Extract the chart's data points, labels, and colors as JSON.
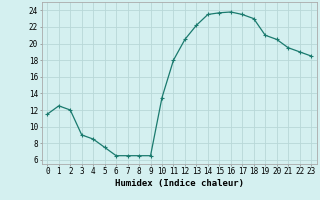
{
  "x": [
    0,
    1,
    2,
    3,
    4,
    5,
    6,
    7,
    8,
    9,
    10,
    11,
    12,
    13,
    14,
    15,
    16,
    17,
    18,
    19,
    20,
    21,
    22,
    23
  ],
  "y": [
    11.5,
    12.5,
    12.0,
    9.0,
    8.5,
    7.5,
    6.5,
    6.5,
    6.5,
    6.5,
    13.5,
    18.0,
    20.5,
    22.2,
    23.5,
    23.7,
    23.8,
    23.5,
    23.0,
    21.0,
    20.5,
    19.5,
    19.0,
    18.5
  ],
  "line_color": "#1a7a6e",
  "marker": "+",
  "marker_size": 3,
  "marker_lw": 0.8,
  "bg_color": "#d4f0f0",
  "grid_color": "#b8d8d8",
  "xlabel": "Humidex (Indice chaleur)",
  "xlim": [
    -0.5,
    23.5
  ],
  "ylim": [
    5.5,
    25.0
  ],
  "yticks": [
    6,
    8,
    10,
    12,
    14,
    16,
    18,
    20,
    22,
    24
  ],
  "xticks": [
    0,
    1,
    2,
    3,
    4,
    5,
    6,
    7,
    8,
    9,
    10,
    11,
    12,
    13,
    14,
    15,
    16,
    17,
    18,
    19,
    20,
    21,
    22,
    23
  ],
  "xtick_labels": [
    "0",
    "1",
    "2",
    "3",
    "4",
    "5",
    "6",
    "7",
    "8",
    "9",
    "10",
    "11",
    "12",
    "13",
    "14",
    "15",
    "16",
    "17",
    "18",
    "19",
    "20",
    "21",
    "22",
    "23"
  ],
  "tick_fontsize": 5.5,
  "xlabel_fontsize": 6.5,
  "line_width": 0.9
}
